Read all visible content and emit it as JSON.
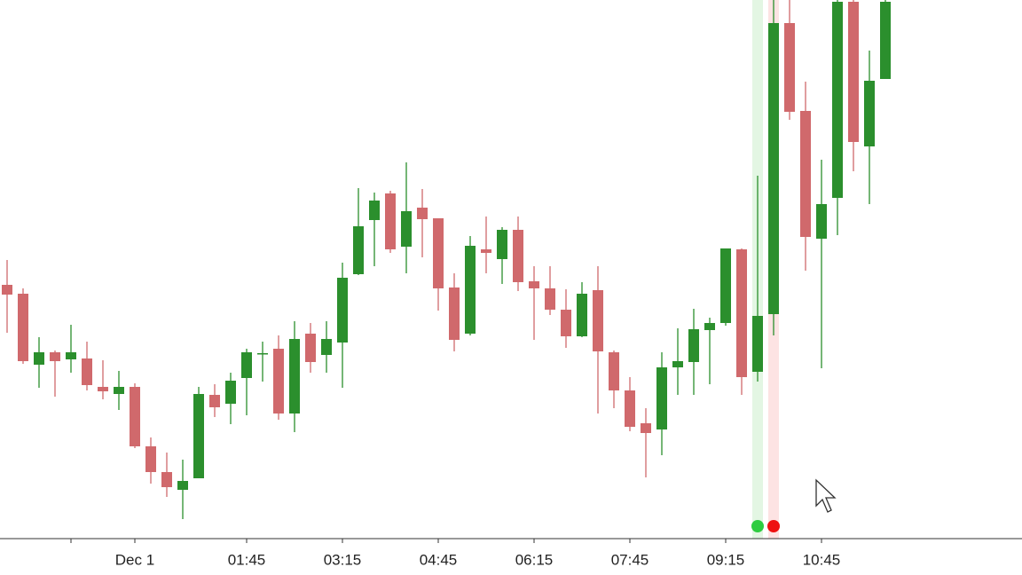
{
  "chart_data": {
    "type": "candlestick",
    "categories": [
      null,
      null,
      null,
      null,
      null,
      null,
      null,
      null,
      "Dec 1",
      null,
      null,
      null,
      null,
      null,
      null,
      "01:45",
      null,
      null,
      null,
      null,
      null,
      "03:15",
      null,
      null,
      null,
      null,
      null,
      "04:45",
      null,
      null,
      null,
      null,
      null,
      "06:15",
      null,
      null,
      null,
      null,
      null,
      "07:45",
      null,
      null,
      null,
      null,
      null,
      "09:15",
      null,
      null,
      null,
      null,
      null,
      "10:45",
      null,
      null,
      null,
      null
    ],
    "open": [
      327,
      317,
      237,
      251,
      243,
      244,
      212,
      204,
      212,
      145,
      116,
      96,
      109,
      203,
      193,
      222,
      249,
      255,
      182,
      272,
      248,
      262,
      339,
      400,
      430,
      370,
      414,
      402,
      324,
      272,
      367,
      356,
      389,
      331,
      323,
      299,
      269,
      321,
      251,
      208,
      171,
      164,
      234,
      240,
      276,
      284,
      367,
      229,
      294,
      622,
      523,
      379,
      425,
      646,
      483,
      559
    ],
    "high": [
      355,
      323,
      268,
      253,
      282,
      263,
      242,
      230,
      216,
      155,
      138,
      130,
      212,
      215,
      228,
      255,
      263,
      270,
      286,
      284,
      286,
      352,
      436,
      431,
      433,
      465,
      435,
      402,
      340,
      382,
      404,
      392,
      404,
      348,
      348,
      322,
      330,
      348,
      253,
      223,
      188,
      251,
      278,
      300,
      290,
      368,
      368,
      450,
      648,
      648,
      556,
      468,
      648,
      648,
      591,
      648
    ],
    "low": [
      273,
      238,
      211,
      201,
      228,
      208,
      198,
      186,
      143,
      103,
      88,
      63,
      109,
      178,
      170,
      180,
      218,
      175,
      161,
      228,
      228,
      211,
      338,
      348,
      363,
      340,
      358,
      298,
      252,
      270,
      340,
      328,
      320,
      265,
      293,
      256,
      268,
      182,
      188,
      162,
      110,
      135,
      203,
      203,
      215,
      281,
      203,
      218,
      270,
      513,
      343,
      233,
      383,
      455,
      418,
      559
    ],
    "close": [
      316,
      241,
      251,
      241,
      251,
      214,
      207,
      212,
      145,
      116,
      99,
      106,
      204,
      189,
      219,
      251,
      250,
      182,
      266,
      240,
      266,
      335,
      393,
      422,
      367,
      410,
      401,
      323,
      265,
      371,
      363,
      389,
      330,
      323,
      299,
      269,
      317,
      252,
      208,
      167,
      160,
      234,
      241,
      277,
      284,
      368,
      223,
      292,
      622,
      522,
      381,
      418,
      646,
      488,
      557,
      646
    ],
    "up_color": "#2b8f2d",
    "down_color": "#d0696c",
    "ylim": [
      41,
      648
    ]
  }
}
